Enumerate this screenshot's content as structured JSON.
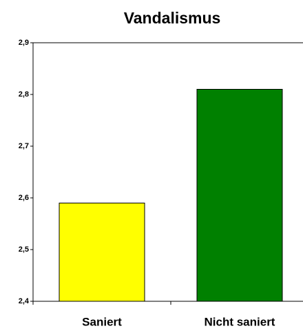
{
  "chart_data": {
    "type": "bar",
    "title": "Vandalismus",
    "categories": [
      "Saniert",
      "Nicht saniert"
    ],
    "values": [
      2.59,
      2.81
    ],
    "colors": [
      "#ffff00",
      "#008000"
    ],
    "ylim": [
      2.4,
      2.9
    ],
    "yticks": [
      {
        "value": 2.4,
        "label": "2,4"
      },
      {
        "value": 2.5,
        "label": "2,5"
      },
      {
        "value": 2.6,
        "label": "2,6"
      },
      {
        "value": 2.7,
        "label": "2,7"
      },
      {
        "value": 2.8,
        "label": "2,8"
      },
      {
        "value": 2.9,
        "label": "2,9"
      }
    ],
    "grid": false
  }
}
